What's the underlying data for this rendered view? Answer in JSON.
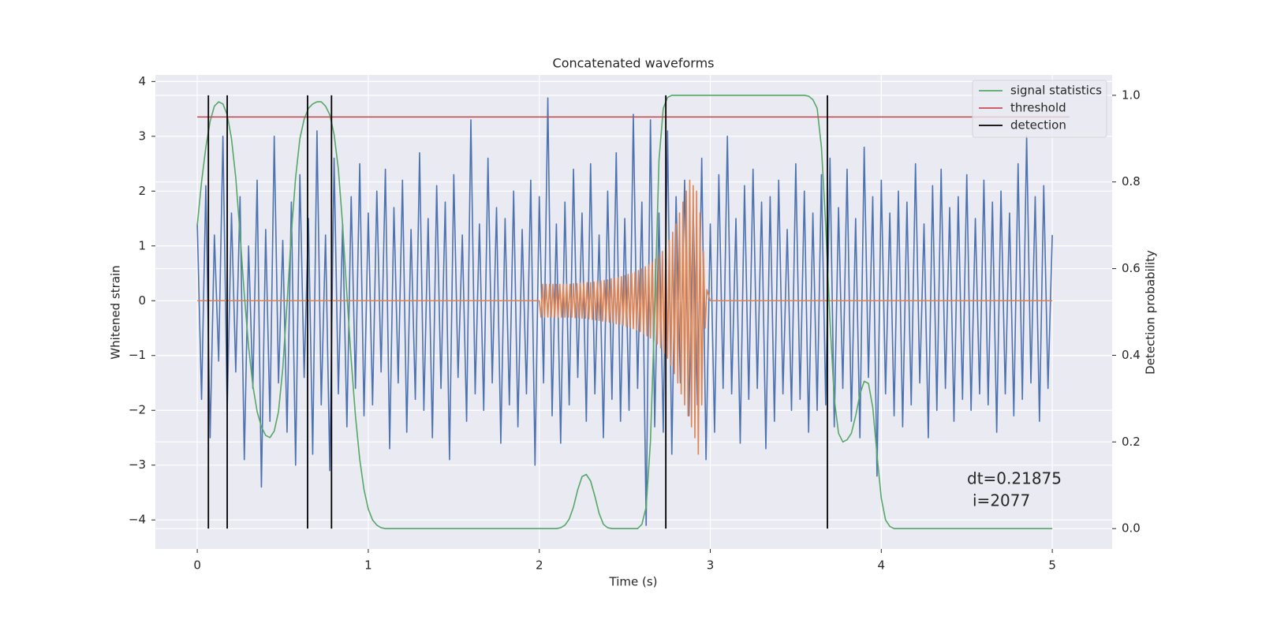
{
  "chart_data": {
    "type": "line",
    "title": "Concatenated waveforms",
    "xlabel": "Time (s)",
    "ylabel": "Whitened strain",
    "y2label": "Detection probability",
    "annotations": [
      "dt=0.21875",
      "i=2077"
    ],
    "xlim": [
      -0.245,
      5.35
    ],
    "ylim": [
      -4.53,
      4.12
    ],
    "y2lim": [
      -0.047,
      1.047
    ],
    "xticks": [
      0,
      1,
      2,
      3,
      4,
      5
    ],
    "yticks": [
      {
        "value": -4,
        "label": "−4"
      },
      {
        "value": -3,
        "label": "−3"
      },
      {
        "value": -2,
        "label": "−2"
      },
      {
        "value": -1,
        "label": "−1"
      },
      0,
      1,
      2,
      3,
      4
    ],
    "y2ticks": [
      {
        "value": 0,
        "label": "0.0"
      },
      {
        "value": 0.2,
        "label": "0.2"
      },
      {
        "value": 0.4,
        "label": "0.4"
      },
      {
        "value": 0.6,
        "label": "0.6"
      },
      {
        "value": 0.8,
        "label": "0.8"
      },
      {
        "value": 1,
        "label": "1.0"
      }
    ],
    "grid": true,
    "legend": "upper right",
    "x": [
      0,
      0.025,
      0.05,
      0.075,
      0.1,
      0.125,
      0.15,
      0.175,
      0.2,
      0.225,
      0.25,
      0.275,
      0.3,
      0.325,
      0.35,
      0.375,
      0.4,
      0.425,
      0.45,
      0.475,
      0.5,
      0.525,
      0.55,
      0.575,
      0.6,
      0.625,
      0.65,
      0.675,
      0.7,
      0.725,
      0.75,
      0.775,
      0.8,
      0.825,
      0.85,
      0.875,
      0.9,
      0.925,
      0.95,
      0.975,
      1,
      1.025,
      1.05,
      1.075,
      1.1,
      1.125,
      1.15,
      1.175,
      1.2,
      1.225,
      1.25,
      1.275,
      1.3,
      1.325,
      1.35,
      1.375,
      1.4,
      1.425,
      1.45,
      1.475,
      1.5,
      1.525,
      1.55,
      1.575,
      1.6,
      1.625,
      1.65,
      1.675,
      1.7,
      1.725,
      1.75,
      1.775,
      1.8,
      1.825,
      1.85,
      1.875,
      1.9,
      1.925,
      1.95,
      1.975,
      2,
      2.025,
      2.05,
      2.075,
      2.1,
      2.125,
      2.15,
      2.175,
      2.2,
      2.225,
      2.25,
      2.275,
      2.3,
      2.325,
      2.35,
      2.375,
      2.4,
      2.425,
      2.45,
      2.475,
      2.5,
      2.525,
      2.55,
      2.575,
      2.6,
      2.625,
      2.65,
      2.675,
      2.7,
      2.725,
      2.75,
      2.775,
      2.8,
      2.825,
      2.85,
      2.875,
      2.9,
      2.925,
      2.95,
      2.975,
      3,
      3.025,
      3.05,
      3.075,
      3.1,
      3.125,
      3.15,
      3.175,
      3.2,
      3.225,
      3.25,
      3.275,
      3.3,
      3.325,
      3.35,
      3.375,
      3.4,
      3.425,
      3.45,
      3.475,
      3.5,
      3.525,
      3.55,
      3.575,
      3.6,
      3.625,
      3.65,
      3.675,
      3.7,
      3.725,
      3.75,
      3.775,
      3.8,
      3.825,
      3.85,
      3.875,
      3.9,
      3.925,
      3.95,
      3.975,
      4,
      4.025,
      4.05,
      4.075,
      4.1,
      4.125,
      4.15,
      4.175,
      4.2,
      4.225,
      4.25,
      4.275,
      4.3,
      4.325,
      4.35,
      4.375,
      4.4,
      4.425,
      4.45,
      4.475,
      4.5,
      4.525,
      4.55,
      4.575,
      4.6,
      4.625,
      4.65,
      4.675,
      4.7,
      4.725,
      4.75,
      4.775,
      4.8,
      4.825,
      4.85,
      4.875,
      4.9,
      4.925,
      4.95,
      4.975,
      5
    ],
    "series": [
      {
        "color": "#4c72b0",
        "values": [
          1.4,
          -1.8,
          2.1,
          -2.5,
          1.2,
          -1.1,
          3.0,
          -2.0,
          1.6,
          -1.3,
          1.9,
          -2.9,
          1.0,
          -1.6,
          2.2,
          -3.4,
          1.3,
          -2.2,
          3.0,
          -1.5,
          1.1,
          -2.4,
          1.8,
          -3.0,
          2.3,
          -1.4,
          1.5,
          -2.8,
          3.1,
          -1.9,
          1.2,
          -3.1,
          2.6,
          -1.7,
          1.4,
          -2.3,
          1.9,
          -1.6,
          2.5,
          -2.1,
          1.6,
          -1.9,
          2.0,
          -1.3,
          2.4,
          -2.7,
          1.7,
          -1.5,
          2.2,
          -2.4,
          1.3,
          -1.8,
          2.7,
          -2.0,
          1.5,
          -2.5,
          2.1,
          -1.6,
          1.8,
          -2.9,
          2.3,
          -1.4,
          1.2,
          -2.2,
          3.3,
          -1.7,
          1.4,
          -2.0,
          2.6,
          -1.5,
          1.7,
          -2.6,
          1.5,
          -1.9,
          2.0,
          -2.3,
          1.3,
          -1.7,
          2.2,
          -3.0,
          1.9,
          -1.5,
          3.7,
          -2.1,
          1.4,
          -2.6,
          1.8,
          -1.9,
          2.4,
          -1.4,
          1.6,
          -2.2,
          2.5,
          -1.7,
          1.2,
          -2.5,
          2.0,
          -1.8,
          2.7,
          -2.2,
          1.5,
          -2.0,
          3.4,
          -1.6,
          1.8,
          -4.1,
          3.3,
          -2.3,
          1.6,
          -2.4,
          3.1,
          -2.8,
          1.9,
          -1.5,
          2.2,
          -2.1,
          1.7,
          -1.9,
          2.6,
          -2.9,
          1.4,
          -2.4,
          2.3,
          -1.6,
          3.0,
          -1.7,
          1.5,
          -2.6,
          2.1,
          -1.8,
          2.4,
          -1.6,
          1.8,
          -2.7,
          1.9,
          -2.2,
          2.2,
          -1.7,
          1.3,
          -2.0,
          2.5,
          -1.8,
          2.0,
          -2.4,
          1.6,
          -2.0,
          2.3,
          -1.9,
          2.6,
          -2.3,
          1.7,
          -1.6,
          2.4,
          -2.2,
          1.5,
          -2.5,
          2.8,
          -1.4,
          1.9,
          -3.2,
          2.2,
          -1.7,
          1.6,
          -2.1,
          2.0,
          -2.3,
          1.8,
          -1.9,
          2.5,
          -1.5,
          1.4,
          -2.5,
          2.1,
          -2.0,
          2.4,
          -1.6,
          1.7,
          -2.2,
          1.9,
          -1.8,
          2.3,
          -2.0,
          1.5,
          -1.7,
          2.2,
          -1.9,
          1.8,
          -2.4,
          2.0,
          -1.7,
          1.6,
          -2.1,
          2.5,
          -1.8,
          3.0,
          -1.5,
          1.9,
          -2.2,
          2.1,
          -1.6,
          1.2
        ]
      },
      {
        "color": "#dd8452",
        "x": [
          0,
          2,
          2.01,
          2.02,
          2.03,
          2.04,
          2.05,
          2.06,
          2.07,
          2.08,
          2.09,
          2.1,
          2.11,
          2.12,
          2.13,
          2.14,
          2.15,
          2.16,
          2.17,
          2.18,
          2.19,
          2.2,
          2.21,
          2.22,
          2.23,
          2.24,
          2.25,
          2.26,
          2.27,
          2.28,
          2.29,
          2.3,
          2.31,
          2.32,
          2.33,
          2.34,
          2.35,
          2.36,
          2.37,
          2.38,
          2.39,
          2.4,
          2.41,
          2.42,
          2.43,
          2.44,
          2.45,
          2.46,
          2.47,
          2.48,
          2.49,
          2.5,
          2.51,
          2.52,
          2.53,
          2.54,
          2.55,
          2.56,
          2.57,
          2.58,
          2.59,
          2.6,
          2.61,
          2.62,
          2.63,
          2.64,
          2.65,
          2.66,
          2.67,
          2.68,
          2.69,
          2.7,
          2.71,
          2.72,
          2.73,
          2.74,
          2.75,
          2.76,
          2.77,
          2.78,
          2.79,
          2.8,
          2.81,
          2.82,
          2.83,
          2.84,
          2.85,
          2.86,
          2.87,
          2.88,
          2.89,
          2.9,
          2.91,
          2.92,
          2.93,
          2.94,
          2.95,
          2.96,
          2.97,
          2.98,
          3,
          5
        ],
        "values": [
          0,
          0,
          -0.3,
          0.3,
          -0.3,
          0.3,
          -0.3,
          0.3,
          -0.3,
          0.3,
          -0.3,
          0.3,
          -0.3,
          0.3,
          -0.3,
          0.3,
          -0.3,
          0.3,
          -0.3,
          0.3,
          -0.3,
          0.31,
          -0.31,
          0.31,
          -0.31,
          0.32,
          -0.32,
          0.32,
          -0.32,
          0.33,
          -0.33,
          0.33,
          -0.34,
          0.34,
          -0.35,
          0.35,
          -0.36,
          0.36,
          -0.37,
          0.37,
          -0.38,
          0.38,
          -0.39,
          0.4,
          -0.4,
          0.41,
          -0.42,
          0.42,
          -0.43,
          0.44,
          -0.45,
          0.46,
          -0.47,
          0.48,
          -0.49,
          0.5,
          -0.51,
          0.52,
          -0.53,
          0.55,
          -0.56,
          0.58,
          -0.6,
          0.62,
          -0.64,
          0.66,
          -0.68,
          0.7,
          -0.73,
          0.76,
          -0.79,
          0.82,
          -0.86,
          0.9,
          -0.95,
          1.0,
          -1.05,
          1.1,
          -1.17,
          1.25,
          -1.33,
          1.4,
          -1.5,
          1.6,
          -1.7,
          1.8,
          -1.9,
          2.0,
          -2.1,
          2.2,
          -2.3,
          2.1,
          -2.5,
          2.0,
          -2.8,
          1.6,
          -1.9,
          0.9,
          -0.5,
          0.2,
          0,
          0
        ]
      },
      {
        "name": "signal statistics",
        "color": "#55a868",
        "axis": "y2",
        "values": [
          0.7,
          0.8,
          0.88,
          0.94,
          0.975,
          0.985,
          0.98,
          0.955,
          0.9,
          0.81,
          0.68,
          0.54,
          0.42,
          0.33,
          0.27,
          0.235,
          0.215,
          0.21,
          0.225,
          0.27,
          0.37,
          0.52,
          0.68,
          0.81,
          0.9,
          0.945,
          0.97,
          0.98,
          0.985,
          0.985,
          0.975,
          0.955,
          0.91,
          0.83,
          0.7,
          0.54,
          0.39,
          0.26,
          0.16,
          0.09,
          0.045,
          0.02,
          0.008,
          0.002,
          0,
          0,
          0,
          0,
          0,
          0,
          0,
          0,
          0,
          0,
          0,
          0,
          0,
          0,
          0,
          0,
          0,
          0,
          0,
          0,
          0,
          0,
          0,
          0,
          0,
          0,
          0,
          0,
          0,
          0,
          0,
          0,
          0,
          0,
          0,
          0,
          0,
          0,
          0,
          0,
          0,
          0.002,
          0.008,
          0.022,
          0.05,
          0.09,
          0.12,
          0.125,
          0.11,
          0.075,
          0.035,
          0.01,
          0.002,
          0,
          0,
          0,
          0,
          0,
          0,
          0,
          0.01,
          0.05,
          0.2,
          0.5,
          0.85,
          0.97,
          0.995,
          1,
          1,
          1,
          1,
          1,
          1,
          1,
          1,
          1,
          1,
          1,
          1,
          1,
          1,
          1,
          1,
          1,
          1,
          1,
          1,
          1,
          1,
          1,
          1,
          1,
          1,
          1,
          1,
          1,
          1,
          1,
          1,
          0.998,
          0.99,
          0.97,
          0.88,
          0.7,
          0.48,
          0.3,
          0.22,
          0.2,
          0.205,
          0.22,
          0.26,
          0.31,
          0.34,
          0.335,
          0.28,
          0.17,
          0.07,
          0.02,
          0.005,
          0,
          0,
          0,
          0,
          0,
          0,
          0,
          0,
          0,
          0,
          0,
          0,
          0,
          0,
          0,
          0,
          0,
          0,
          0,
          0,
          0,
          0,
          0,
          0,
          0,
          0,
          0,
          0,
          0,
          0,
          0,
          0,
          0,
          0,
          0,
          0,
          0,
          0
        ]
      },
      {
        "name": "threshold",
        "color": "#c44e52",
        "axis": "y2",
        "x": [
          0,
          5.1
        ],
        "values": [
          0.95,
          0.95
        ]
      },
      {
        "name": "detection",
        "color": "#000000",
        "axis": "y2",
        "type": "vlines",
        "x": [
          0.065,
          0.175,
          0.645,
          0.785,
          2.74,
          3.685
        ],
        "span": [
          0,
          1
        ]
      }
    ]
  }
}
